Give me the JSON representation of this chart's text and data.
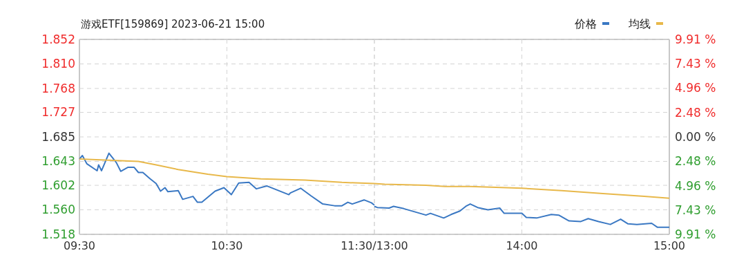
{
  "chart_data": [
    {
      "type": "line",
      "title": "游戏ETF[159869] 2023-06-21 15:00",
      "xlim": [
        9.5,
        11.5
      ],
      "xticks": [
        {
          "value": 9.5,
          "label": "09:30"
        },
        {
          "value": 10.5,
          "label": "10:30"
        },
        {
          "value": 11.5,
          "label": "11:30/13:00"
        }
      ],
      "ylim": [
        1.518,
        1.852
      ],
      "yticks": [
        1.518,
        {
          "value": 1.56,
          "label": "1.560"
        },
        1.602,
        1.643,
        1.685,
        1.727,
        1.768,
        {
          "value": 1.81,
          "label": "1.810"
        },
        1.852
      ],
      "grid": true,
      "series": [
        {
          "color": "#3a78c3",
          "x": [
            9.5,
            9.52,
            9.55,
            9.62,
            9.63,
            9.65,
            9.7,
            9.75,
            9.78,
            9.83,
            9.87,
            9.9,
            9.93,
            9.98,
            10.02,
            10.05,
            10.08,
            10.1,
            10.17,
            10.2,
            10.27,
            10.3,
            10.33,
            10.42,
            10.48,
            10.53,
            10.58,
            10.65,
            10.7,
            10.77,
            10.82,
            10.92,
            10.93,
            11,
            11.07,
            11.15,
            11.23,
            11.28,
            11.32,
            11.35,
            11.43,
            11.48,
            11.5
          ],
          "values": [
            1.647,
            1.653,
            1.639,
            1.627,
            1.637,
            1.627,
            1.657,
            1.641,
            1.626,
            1.633,
            1.633,
            1.624,
            1.624,
            1.613,
            1.605,
            1.592,
            1.598,
            1.591,
            1.593,
            1.578,
            1.583,
            1.573,
            1.573,
            1.592,
            1.598,
            1.586,
            1.606,
            1.607,
            1.596,
            1.601,
            1.596,
            1.586,
            1.589,
            1.597,
            1.584,
            1.57,
            1.567,
            1.567,
            1.573,
            1.57,
            1.577,
            1.572,
            1.568
          ]
        },
        {
          "color": "#e8b84a",
          "x": [
            9.5,
            9.7,
            9.9,
            10.02,
            10.17,
            10.37,
            10.5,
            10.68,
            10.73,
            11.03,
            11.28,
            11.5
          ],
          "values": [
            1.647,
            1.645,
            1.643,
            1.637,
            1.629,
            1.621,
            1.617,
            1.614,
            1.613,
            1.611,
            1.607,
            1.605
          ]
        }
      ]
    },
    {
      "type": "line",
      "xlim": [
        13,
        15
      ],
      "xticks": [
        {
          "value": 13,
          "label": null
        },
        {
          "value": 14,
          "label": "14:00"
        },
        {
          "value": 15,
          "label": "15:00"
        }
      ],
      "ylim": [
        1.518,
        1.852
      ],
      "yticks": [
        1.518,
        1.56,
        1.602,
        1.643,
        1.685,
        1.727,
        1.768,
        1.81,
        1.852
      ],
      "y2lim": [
        -9.91,
        9.91
      ],
      "y2ticks": [
        {
          "value": 9.91,
          "label": "9.91 %"
        },
        {
          "value": 7.43,
          "label": "7.43 %"
        },
        {
          "value": 4.96,
          "label": "4.96 %"
        },
        {
          "value": 2.48,
          "label": "2.48 %"
        },
        {
          "value": 0,
          "label": "0.00 %"
        },
        {
          "value": -2.48,
          "label": "2.48 %"
        },
        {
          "value": -4.96,
          "label": "4.96 %"
        },
        {
          "value": -7.43,
          "label": "7.43 %"
        },
        {
          "value": -9.91,
          "label": "9.91 %"
        }
      ],
      "tick_labels": "x",
      "grid": true,
      "legend": "top right",
      "series": [
        {
          "name": "价格",
          "color": "#3a78c3",
          "x": [
            13,
            13.02,
            13.1,
            13.13,
            13.2,
            13.35,
            13.38,
            13.47,
            13.52,
            13.58,
            13.62,
            13.65,
            13.7,
            13.77,
            13.85,
            13.88,
            14,
            14.03,
            14.1,
            14.2,
            14.25,
            14.32,
            14.4,
            14.45,
            14.52,
            14.6,
            14.67,
            14.72,
            14.78,
            14.88,
            14.92,
            15
          ],
          "values": [
            1.566,
            1.564,
            1.563,
            1.566,
            1.562,
            1.551,
            1.554,
            1.546,
            1.552,
            1.558,
            1.566,
            1.57,
            1.564,
            1.56,
            1.563,
            1.554,
            1.554,
            1.547,
            1.546,
            1.552,
            1.551,
            1.541,
            1.54,
            1.545,
            1.54,
            1.535,
            1.544,
            1.536,
            1.535,
            1.537,
            1.53,
            1.53
          ]
        },
        {
          "name": "均线",
          "color": "#e8b84a",
          "x": [
            13,
            13.07,
            13.35,
            13.48,
            13.65,
            14,
            14.27,
            14.55,
            14.83,
            15
          ],
          "values": [
            1.605,
            1.604,
            1.602,
            1.6,
            1.6,
            1.597,
            1.593,
            1.588,
            1.583,
            1.58
          ]
        }
      ]
    }
  ]
}
